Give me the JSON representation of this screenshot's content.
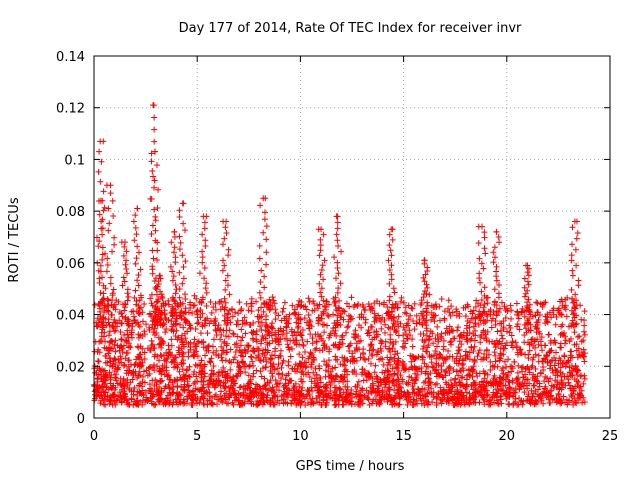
{
  "chart_data": {
    "type": "scatter",
    "title": "Day 177 of 2014, Rate Of TEC Index for receiver invr",
    "xlabel": "GPS time / hours",
    "ylabel": "ROTI / TECUs",
    "xlim": [
      0,
      25
    ],
    "ylim": [
      0,
      0.14
    ],
    "xticks": [
      0,
      5,
      10,
      15,
      20,
      25
    ],
    "yticks": [
      0,
      0.02,
      0.04,
      0.06,
      0.08,
      0.1,
      0.12,
      0.14
    ],
    "xtick_labels": [
      "0",
      "5",
      "10",
      "15",
      "20",
      "25"
    ],
    "ytick_labels": [
      "0",
      "0.02",
      "0.04",
      "0.06",
      "0.08",
      "0.1",
      "0.12",
      "0.14"
    ],
    "grid": true,
    "marker": "plus",
    "color": "#ff0000",
    "series": [
      {
        "name": "ROTI",
        "x_range": [
          0,
          23.8
        ],
        "typical_range": [
          0.005,
          0.045
        ],
        "peaks": [
          {
            "x": 0.3,
            "y": 0.107
          },
          {
            "x": 0.4,
            "y": 0.084
          },
          {
            "x": 0.8,
            "y": 0.09
          },
          {
            "x": 1.5,
            "y": 0.068
          },
          {
            "x": 2.1,
            "y": 0.081
          },
          {
            "x": 2.9,
            "y": 0.121
          },
          {
            "x": 2.95,
            "y": 0.103
          },
          {
            "x": 3.2,
            "y": 0.055
          },
          {
            "x": 3.9,
            "y": 0.072
          },
          {
            "x": 4.3,
            "y": 0.083
          },
          {
            "x": 5.3,
            "y": 0.078
          },
          {
            "x": 6.4,
            "y": 0.076
          },
          {
            "x": 8.2,
            "y": 0.085
          },
          {
            "x": 11.0,
            "y": 0.073
          },
          {
            "x": 11.8,
            "y": 0.078
          },
          {
            "x": 14.4,
            "y": 0.073
          },
          {
            "x": 16.0,
            "y": 0.061
          },
          {
            "x": 18.8,
            "y": 0.074
          },
          {
            "x": 19.5,
            "y": 0.072
          },
          {
            "x": 21.0,
            "y": 0.059
          },
          {
            "x": 23.3,
            "y": 0.076
          }
        ]
      }
    ]
  }
}
